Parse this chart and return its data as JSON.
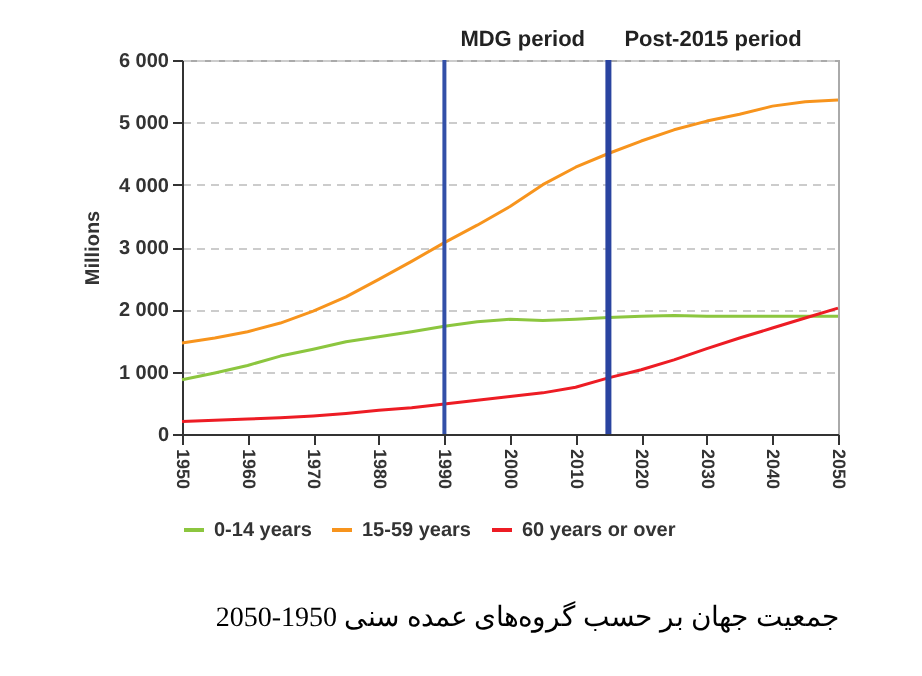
{
  "chart_data": {
    "type": "line",
    "ylabel": "Millions",
    "x": [
      1950,
      1955,
      1960,
      1965,
      1970,
      1975,
      1980,
      1985,
      1990,
      1995,
      2000,
      2005,
      2010,
      2015,
      2020,
      2025,
      2030,
      2035,
      2040,
      2045,
      2050
    ],
    "series": [
      {
        "name": "0-14 years",
        "color": "#8cc63f",
        "values": [
          870,
          980,
          1100,
          1250,
          1360,
          1480,
          1560,
          1640,
          1730,
          1800,
          1840,
          1820,
          1840,
          1870,
          1890,
          1900,
          1890,
          1890,
          1890,
          1890,
          1890
        ]
      },
      {
        "name": "15-59 years",
        "color": "#f7941d",
        "values": [
          1460,
          1540,
          1640,
          1780,
          1970,
          2200,
          2480,
          2770,
          3070,
          3350,
          3650,
          4000,
          4280,
          4500,
          4700,
          4880,
          5020,
          5130,
          5260,
          5330,
          5360
        ]
      },
      {
        "name": "60 years or over",
        "color": "#ed1c24",
        "values": [
          200,
          220,
          240,
          260,
          290,
          330,
          380,
          420,
          480,
          540,
          600,
          660,
          750,
          900,
          1030,
          1190,
          1370,
          1540,
          1700,
          1860,
          2020
        ]
      }
    ],
    "xlim": [
      1950,
      2050
    ],
    "xticks": [
      1950,
      1960,
      1970,
      1980,
      1990,
      2000,
      2010,
      2020,
      2030,
      2040,
      2050
    ],
    "ylim": [
      0,
      6000
    ],
    "yticks": [
      0,
      {
        "value": 1000,
        "label": "1 000"
      },
      {
        "value": 2000,
        "label": "2 000"
      },
      {
        "value": 3000,
        "label": "3 000"
      },
      {
        "value": 4000,
        "label": "4 000"
      },
      {
        "value": 5000,
        "label": "5 000"
      },
      {
        "value": 6000,
        "label": "6 000"
      }
    ],
    "ref_lines": [
      {
        "axis": "x",
        "value": 1990,
        "label": "MDG period",
        "color": "#3350a8"
      },
      {
        "axis": "x",
        "value": 2015,
        "label": "Post-2015 period",
        "color": "#2a44a0"
      }
    ],
    "grid": "y",
    "legend": "bottom",
    "line_style": "solid",
    "marker": "none",
    "annotations": [
      "جمعیت جهان بر حسب گروه‌های عمده سنی 1950-2050"
    ]
  }
}
